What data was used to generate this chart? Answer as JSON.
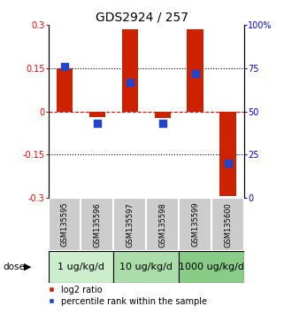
{
  "title": "GDS2924 / 257",
  "samples": [
    "GSM135595",
    "GSM135596",
    "GSM135597",
    "GSM135598",
    "GSM135599",
    "GSM135600"
  ],
  "log2_ratio": [
    0.15,
    -0.02,
    0.285,
    -0.022,
    0.285,
    -0.295
  ],
  "percentile_rank": [
    76,
    43,
    67,
    43,
    72,
    20
  ],
  "ylim_left": [
    -0.3,
    0.3
  ],
  "ylim_right": [
    0,
    100
  ],
  "yticks_left": [
    -0.3,
    -0.15,
    0,
    0.15,
    0.3
  ],
  "yticks_right": [
    0,
    25,
    50,
    75,
    100
  ],
  "ytick_labels_right": [
    "0",
    "25",
    "50",
    "75",
    "100%"
  ],
  "bar_color": "#cc2200",
  "dot_color": "#2244cc",
  "bar_width": 0.5,
  "dot_size": 28,
  "dose_groups": [
    {
      "label": "1 ug/kg/d",
      "color": "#cceecc"
    },
    {
      "label": "10 ug/kg/d",
      "color": "#aaddaa"
    },
    {
      "label": "1000 ug/kg/d",
      "color": "#88cc88"
    }
  ],
  "dose_label": "dose",
  "legend_red": "log2 ratio",
  "legend_blue": "percentile rank within the sample",
  "bg_sample_labels": "#cccccc",
  "title_fontsize": 10,
  "tick_fontsize": 7,
  "sample_fontsize": 6,
  "dose_fontsize": 8,
  "legend_fontsize": 7
}
